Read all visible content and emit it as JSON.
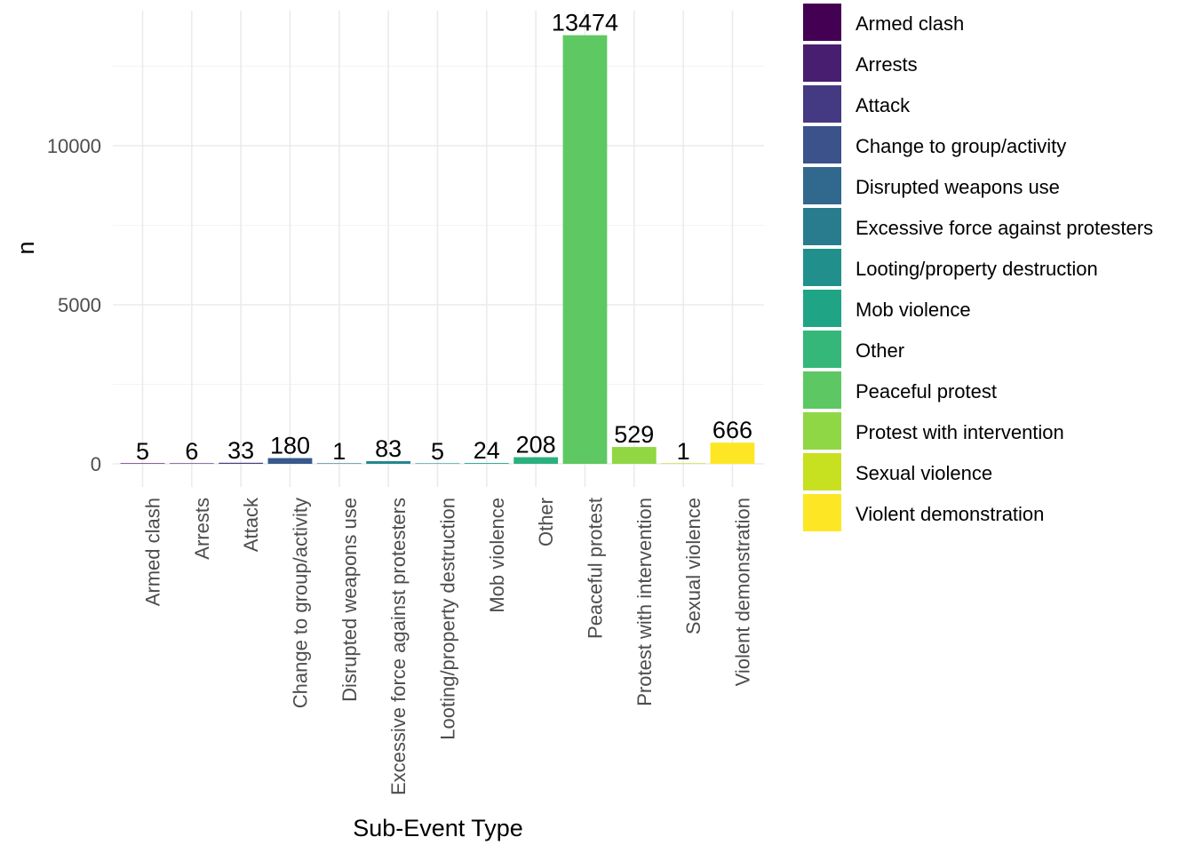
{
  "chart_data": {
    "type": "bar",
    "xlabel": "Sub-Event Type",
    "ylabel": "n",
    "ylim": [
      0,
      14000
    ],
    "yticks": [
      0,
      5000,
      10000
    ],
    "grid": true,
    "legend_position": "right",
    "categories": [
      "Armed clash",
      "Arrests",
      "Attack",
      "Change to group/activity",
      "Disrupted weapons use",
      "Excessive force against protesters",
      "Looting/property destruction",
      "Mob violence",
      "Other",
      "Peaceful protest",
      "Protest with intervention",
      "Sexual violence",
      "Violent demonstration"
    ],
    "values": [
      5,
      6,
      33,
      180,
      1,
      83,
      5,
      24,
      208,
      13474,
      529,
      1,
      666
    ],
    "colors": [
      "#440154",
      "#481A6C",
      "#472F7D",
      "#414487",
      "#39568C",
      "#31688E",
      "#2A788E",
      "#23888E",
      "#1F988B",
      "#22A884",
      "#35B779",
      "#54C568",
      "#7AD151",
      "#A5DB36",
      "#D2E21B",
      "#FDE725"
    ],
    "bar_colors": [
      "#440154",
      "#482173",
      "#433E85",
      "#38598C",
      "#2D708E",
      "#25858E",
      "#1E9B8A",
      "#1FA187",
      "#2BB07F",
      "#5EC962",
      "#90D743",
      "#C8E020",
      "#FDE725"
    ],
    "legend_colors": [
      "#440154",
      "#481F70",
      "#443A83",
      "#3B528B",
      "#31688E",
      "#287C8E",
      "#21908C",
      "#20A486",
      "#35B779",
      "#5DC863",
      "#8FD744",
      "#C7E020",
      "#FDE725"
    ]
  }
}
